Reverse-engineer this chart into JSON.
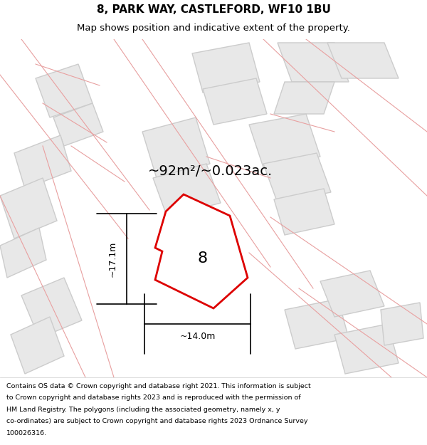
{
  "title_line1": "8, PARK WAY, CASTLEFORD, WF10 1BU",
  "title_line2": "Map shows position and indicative extent of the property.",
  "area_text": "~92m²/~0.023ac.",
  "dim_width": "~14.0m",
  "dim_height": "~17.1m",
  "property_label": "8",
  "bg_color": "#f5f5f5",
  "map_bg": "#f0eeee",
  "property_fill": "#ffffff",
  "property_edge": "#dd0000",
  "building_fill": "#e8e8e8",
  "building_edge": "#cccccc",
  "pink_line_color": "#e8a0a0",
  "footer_lines": [
    "Contains OS data © Crown copyright and database right 2021. This information is subject",
    "to Crown copyright and database rights 2023 and is reproduced with the permission of",
    "HM Land Registry. The polygons (including the associated geometry, namely x, y",
    "co-ordinates) are subject to Crown copyright and database rights 2023 Ordnance Survey",
    "100026316."
  ]
}
